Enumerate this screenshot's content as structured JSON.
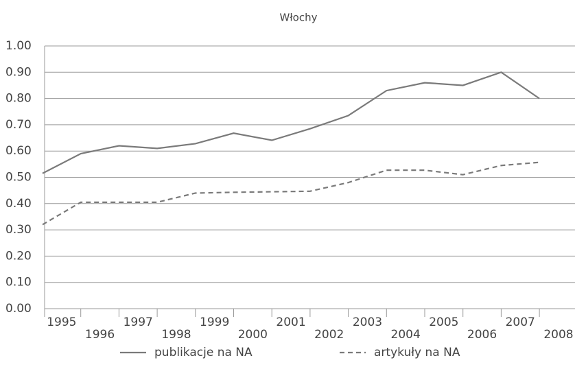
{
  "chart_data": {
    "type": "line",
    "title": "Włochy",
    "categories": [
      "1995",
      "1996",
      "1997",
      "1998",
      "1999",
      "2000",
      "2001",
      "2002",
      "2003",
      "2004",
      "2005",
      "2006",
      "2007",
      "2008"
    ],
    "series": [
      {
        "name": "publikacje na NA",
        "color": "#7a7a7a",
        "dash": false,
        "values": [
          0.515,
          0.59,
          0.62,
          0.61,
          0.628,
          0.668,
          0.641,
          0.685,
          0.735,
          0.83,
          0.86,
          0.85,
          0.9,
          0.8
        ]
      },
      {
        "name": "artykuły na NA",
        "color": "#7a7a7a",
        "dash": true,
        "values": [
          0.32,
          0.405,
          0.405,
          0.405,
          0.44,
          0.443,
          0.445,
          0.447,
          0.48,
          0.527,
          0.527,
          0.51,
          0.545,
          0.557
        ]
      }
    ],
    "ylim": [
      0,
      1
    ],
    "yticks": [
      {
        "value": 0,
        "label": "0.00"
      },
      {
        "value": 0.1,
        "label": "0.10"
      },
      {
        "value": 0.2,
        "label": "0.20"
      },
      {
        "value": 0.3,
        "label": "0.30"
      },
      {
        "value": 0.4,
        "label": "0.40"
      },
      {
        "value": 0.5,
        "label": "0.50"
      },
      {
        "value": 0.6,
        "label": "0.60"
      },
      {
        "value": 0.7,
        "label": "0.70"
      },
      {
        "value": 0.8,
        "label": "0.80"
      },
      {
        "value": 0.9,
        "label": "0.90"
      },
      {
        "value": 1,
        "label": "1.00"
      }
    ],
    "grid": true
  }
}
